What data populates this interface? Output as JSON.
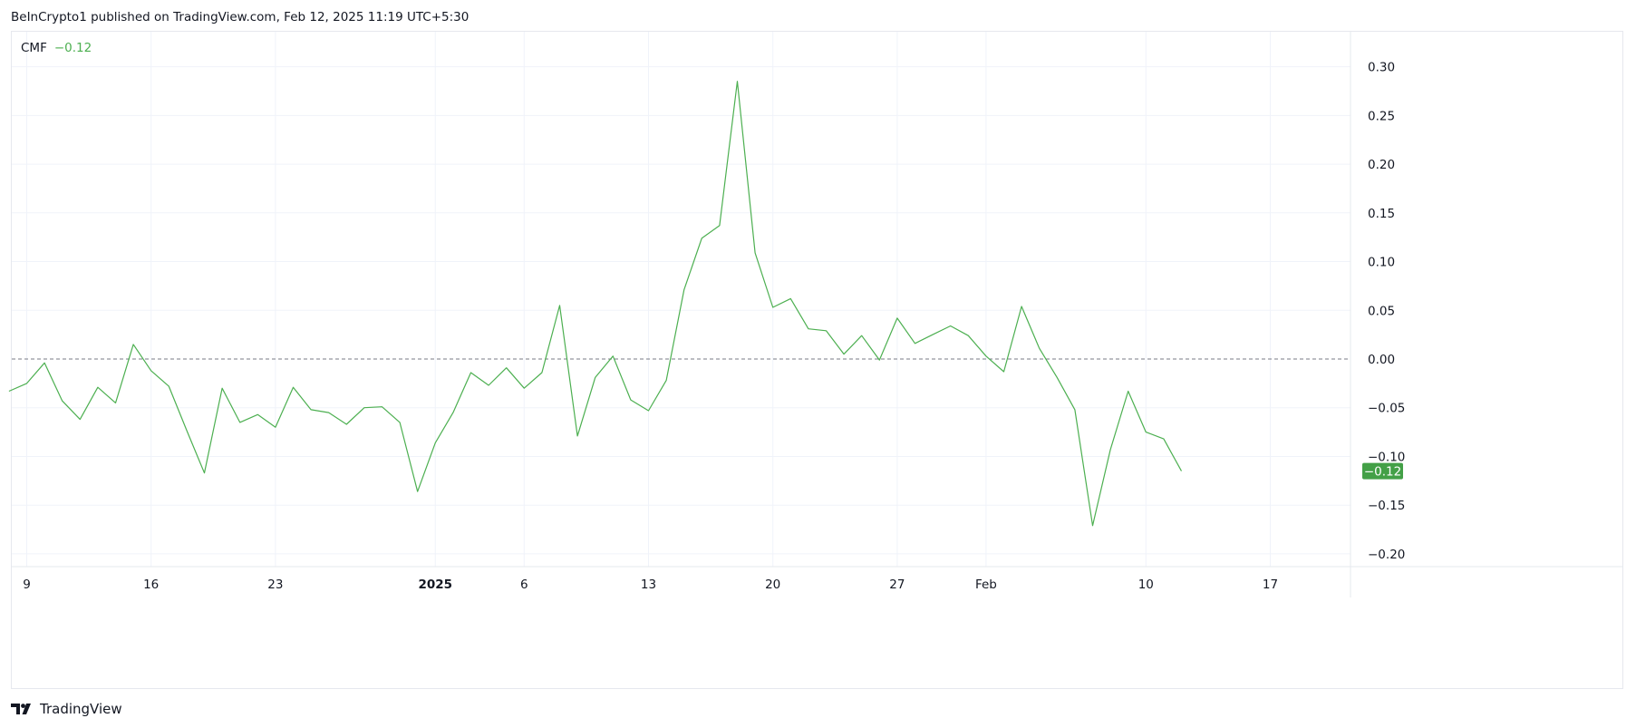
{
  "header": {
    "publisher_line": "BeInCrypto1 published on TradingView.com, Feb 12, 2025 11:19 UTC+5:30"
  },
  "legend": {
    "indicator": "CMF",
    "value": "−0.12"
  },
  "footer": {
    "brand": "TradingView"
  },
  "colors": {
    "line": "#4caf50",
    "price_label_bg": "#43a047",
    "zero_line": "#787b86",
    "grid": "#f0f3fa"
  },
  "chart_data": {
    "type": "line",
    "title": "",
    "xlabel": "",
    "ylabel": "",
    "ylim": [
      -0.22,
      0.34
    ],
    "grid": true,
    "zero_line": 0,
    "y_ticks": [
      0.3,
      0.25,
      0.2,
      0.15,
      0.1,
      0.05,
      0.0,
      -0.05,
      -0.1,
      -0.15,
      -0.2
    ],
    "y_tick_labels": [
      "0.30",
      "0.25",
      "0.20",
      "0.15",
      "0.10",
      "0.05",
      "0.00",
      "−0.05",
      "−0.10",
      "−0.15",
      "−0.20"
    ],
    "x_ticks": [
      {
        "label": "9",
        "date": "2024-12-09",
        "bold": false
      },
      {
        "label": "16",
        "date": "2024-12-16",
        "bold": false
      },
      {
        "label": "23",
        "date": "2024-12-23",
        "bold": false
      },
      {
        "label": "2025",
        "date": "2025-01-01",
        "bold": true
      },
      {
        "label": "6",
        "date": "2025-01-06",
        "bold": false
      },
      {
        "label": "13",
        "date": "2025-01-13",
        "bold": false
      },
      {
        "label": "20",
        "date": "2025-01-20",
        "bold": false
      },
      {
        "label": "27",
        "date": "2025-01-27",
        "bold": false
      },
      {
        "label": "Feb",
        "date": "2025-02-01",
        "bold": false
      },
      {
        "label": "10",
        "date": "2025-02-10",
        "bold": false
      },
      {
        "label": "17",
        "date": "2025-02-17",
        "bold": false
      }
    ],
    "last_value_label": "−0.12",
    "series": [
      {
        "values": [
          {
            "x": "2024-12-08",
            "y": -0.033
          },
          {
            "x": "2024-12-09",
            "y": -0.025
          },
          {
            "x": "2024-12-10",
            "y": -0.004
          },
          {
            "x": "2024-12-11",
            "y": -0.043
          },
          {
            "x": "2024-12-12",
            "y": -0.062
          },
          {
            "x": "2024-12-13",
            "y": -0.029
          },
          {
            "x": "2024-12-14",
            "y": -0.045
          },
          {
            "x": "2024-12-15",
            "y": 0.015
          },
          {
            "x": "2024-12-16",
            "y": -0.012
          },
          {
            "x": "2024-12-17",
            "y": -0.028
          },
          {
            "x": "2024-12-18",
            "y": -0.073
          },
          {
            "x": "2024-12-19",
            "y": -0.117
          },
          {
            "x": "2024-12-20",
            "y": -0.03
          },
          {
            "x": "2024-12-21",
            "y": -0.065
          },
          {
            "x": "2024-12-22",
            "y": -0.057
          },
          {
            "x": "2024-12-23",
            "y": -0.07
          },
          {
            "x": "2024-12-24",
            "y": -0.029
          },
          {
            "x": "2024-12-25",
            "y": -0.052
          },
          {
            "x": "2024-12-26",
            "y": -0.055
          },
          {
            "x": "2024-12-27",
            "y": -0.067
          },
          {
            "x": "2024-12-28",
            "y": -0.05
          },
          {
            "x": "2024-12-29",
            "y": -0.049
          },
          {
            "x": "2024-12-30",
            "y": -0.065
          },
          {
            "x": "2024-12-31",
            "y": -0.136
          },
          {
            "x": "2025-01-01",
            "y": -0.086
          },
          {
            "x": "2025-01-02",
            "y": -0.055
          },
          {
            "x": "2025-01-03",
            "y": -0.014
          },
          {
            "x": "2025-01-04",
            "y": -0.027
          },
          {
            "x": "2025-01-05",
            "y": -0.009
          },
          {
            "x": "2025-01-06",
            "y": -0.03
          },
          {
            "x": "2025-01-07",
            "y": -0.014
          },
          {
            "x": "2025-01-08",
            "y": 0.055
          },
          {
            "x": "2025-01-09",
            "y": -0.079
          },
          {
            "x": "2025-01-10",
            "y": -0.019
          },
          {
            "x": "2025-01-11",
            "y": 0.003
          },
          {
            "x": "2025-01-12",
            "y": -0.042
          },
          {
            "x": "2025-01-13",
            "y": -0.053
          },
          {
            "x": "2025-01-14",
            "y": -0.022
          },
          {
            "x": "2025-01-15",
            "y": 0.071
          },
          {
            "x": "2025-01-16",
            "y": 0.124
          },
          {
            "x": "2025-01-17",
            "y": 0.137
          },
          {
            "x": "2025-01-18",
            "y": 0.285
          },
          {
            "x": "2025-01-19",
            "y": 0.109
          },
          {
            "x": "2025-01-20",
            "y": 0.053
          },
          {
            "x": "2025-01-21",
            "y": 0.062
          },
          {
            "x": "2025-01-22",
            "y": 0.031
          },
          {
            "x": "2025-01-23",
            "y": 0.029
          },
          {
            "x": "2025-01-24",
            "y": 0.005
          },
          {
            "x": "2025-01-25",
            "y": 0.024
          },
          {
            "x": "2025-01-26",
            "y": -0.001
          },
          {
            "x": "2025-01-27",
            "y": 0.042
          },
          {
            "x": "2025-01-28",
            "y": 0.016
          },
          {
            "x": "2025-01-29",
            "y": 0.025
          },
          {
            "x": "2025-01-30",
            "y": 0.034
          },
          {
            "x": "2025-01-31",
            "y": 0.024
          },
          {
            "x": "2025-02-01",
            "y": 0.003
          },
          {
            "x": "2025-02-02",
            "y": -0.013
          },
          {
            "x": "2025-02-03",
            "y": 0.054
          },
          {
            "x": "2025-02-04",
            "y": 0.011
          },
          {
            "x": "2025-02-05",
            "y": -0.019
          },
          {
            "x": "2025-02-06",
            "y": -0.052
          },
          {
            "x": "2025-02-07",
            "y": -0.171
          },
          {
            "x": "2025-02-08",
            "y": -0.093
          },
          {
            "x": "2025-02-09",
            "y": -0.033
          },
          {
            "x": "2025-02-10",
            "y": -0.075
          },
          {
            "x": "2025-02-11",
            "y": -0.082
          },
          {
            "x": "2025-02-12",
            "y": -0.115
          }
        ]
      }
    ]
  }
}
